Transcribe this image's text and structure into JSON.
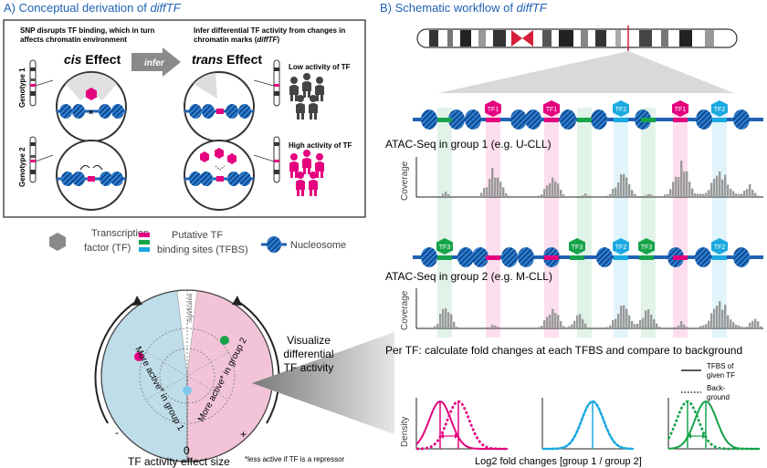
{
  "panelA": {
    "title": "A) Conceptual derivation of ",
    "title_italic": "diffTF",
    "left_line1": "SNP disrupts TF binding, which in turn",
    "left_line2": "affects chromatin environment",
    "right_line1": "Infer differential TF activity from changes in",
    "right_line2": "chromatin marks (",
    "right_line2_italic": "diffTF",
    "right_line2_end": ")",
    "cis_italic": "cis",
    "cis_word": " Effect",
    "infer": "infer",
    "trans_italic": "trans",
    "trans_word": " Effect",
    "genotype1": "Genotype 1",
    "genotype2": "Genotype 2",
    "low": "Low activity of TF",
    "high": "High activity of TF"
  },
  "legend": {
    "tf_line1": "Transcription",
    "tf_line2": "factor (TF)",
    "tfbs_line1": "Putative TF",
    "tfbs_line2": "binding sites (TFBS)",
    "nucleosome": "Nucleosome"
  },
  "panelB": {
    "title": "B) Schematic workflow of ",
    "title_italic": "diffTF",
    "group1": "ATAC-Seq in group 1 (e.g. U-CLL)",
    "group2": "ATAC-Seq in group 2 (e.g. M-CLL)",
    "coverage": "Coverage",
    "per_tf": "Per TF: calculate fold changes at each TFBS and compare to background",
    "density": "Density",
    "xaxis": "Log2 fold changes [group 1 / group 2]",
    "tfbs_legend1": "TFBS of",
    "tfbs_legend2": "given TF",
    "bg_legend1": "Back-",
    "bg_legend2": "ground",
    "tf_labels_row1": [
      "TF1",
      "TF1",
      "TF2",
      "TF1",
      "TF2"
    ],
    "tf_labels_row2": [
      "TF3",
      "TF3",
      "TF2",
      "TF3",
      "TF2"
    ]
  },
  "wheel": {
    "significance": "Significance",
    "left": "More active* in group 1",
    "right": "More active* in group 2",
    "visualize1": "Visualize",
    "visualize2": "differential",
    "visualize3": "TF activity",
    "minus": "-",
    "plus": "+",
    "zero": "0",
    "axis": "TF activity effect size",
    "footnote": "*less active if TF is a repressor"
  },
  "colors": {
    "magenta": "#e4007e",
    "cyan": "#1aa9e0",
    "green": "#16a34a",
    "dna": "#1f62b3",
    "pink_bg": "#f3c4d8",
    "blue_bg": "#bfdde9"
  }
}
